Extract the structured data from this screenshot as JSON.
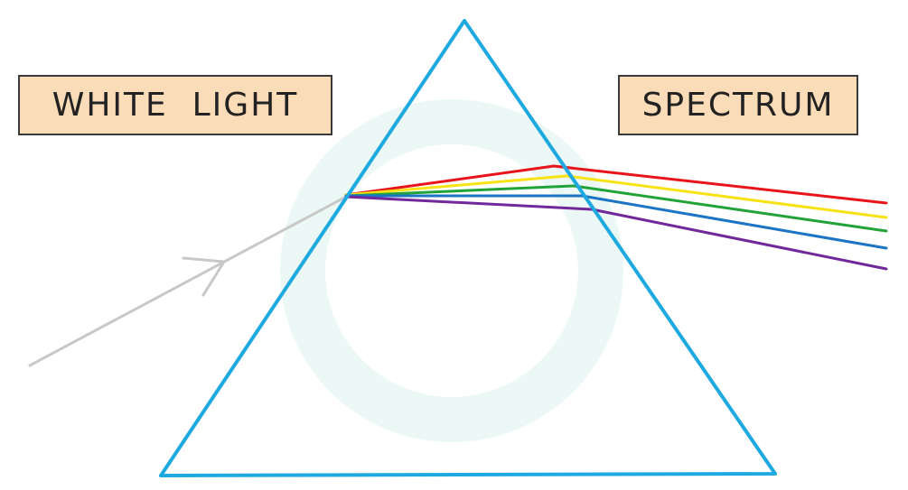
{
  "labels": {
    "incident": "WHITE  LIGHT",
    "output": "SPECTRUM"
  },
  "colors": {
    "label_fill": "#fbdcb8",
    "label_border": "#3a3a3a",
    "prism": "#1ea9e1",
    "incident_ray": "#c8c8c8",
    "watermark": "#e9f7f5",
    "spectrum": [
      "#e8141b",
      "#f7e315",
      "#22a33a",
      "#1c74c4",
      "#70289a"
    ]
  },
  "icons": {
    "watermark": "logo-watermark-icon",
    "arrow": "arrowhead-icon"
  }
}
